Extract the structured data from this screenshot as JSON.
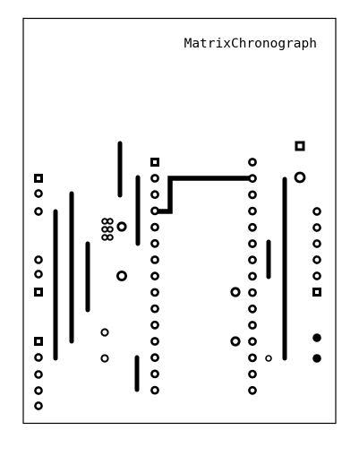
{
  "board": {
    "title": "MatrixChronograph"
  },
  "colors": {
    "background": "#ffffff",
    "copper": "#000000"
  }
}
